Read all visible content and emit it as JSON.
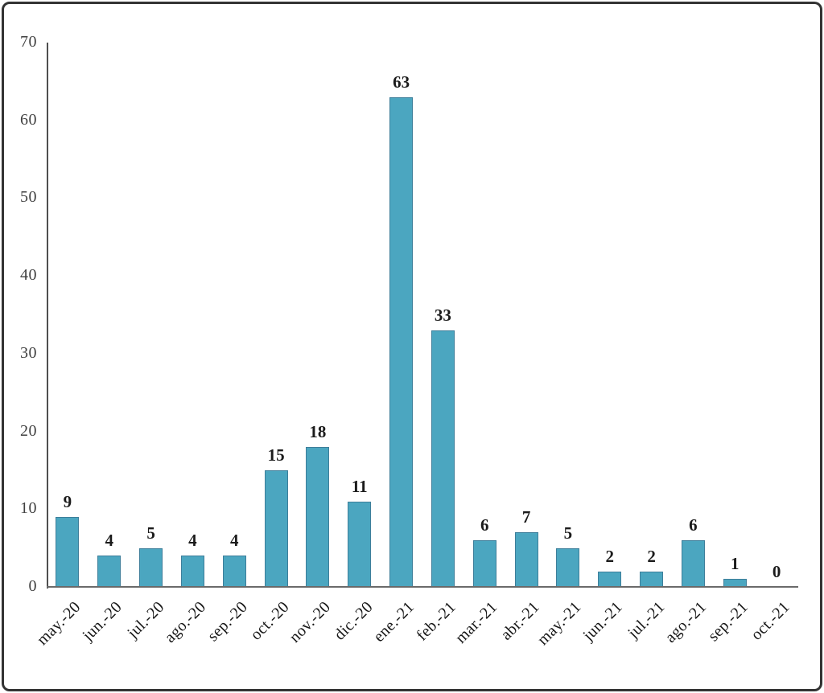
{
  "frame": {
    "background": "#ffffff",
    "border_color": "#333333"
  },
  "chart_data": {
    "type": "bar",
    "categories": [
      "may.-20",
      "jun.-20",
      "jul.-20",
      "ago.-20",
      "sep.-20",
      "oct.-20",
      "nov.-20",
      "dic.-20",
      "ene.-21",
      "feb.-21",
      "mar.-21",
      "abr.-21",
      "may.-21",
      "jun.-21",
      "jul.-21",
      "ago.-21",
      "sep.-21",
      "oct.-21"
    ],
    "values": [
      9,
      4,
      5,
      4,
      4,
      15,
      18,
      11,
      63,
      33,
      6,
      7,
      5,
      2,
      2,
      6,
      1,
      0
    ],
    "title": "",
    "xlabel": "",
    "ylabel": "",
    "ylim": [
      0,
      70
    ],
    "yticks": [
      0,
      10,
      20,
      30,
      40,
      50,
      60,
      70
    ],
    "grid": false,
    "legend": null,
    "data_labels": true,
    "bar_color": "#4BA6C0",
    "bar_border_color": "#3D7E9A",
    "value_label_color": "#1b1b1b",
    "x_tick_label_color": "#161616",
    "y_tick_label_color": "#3f3f3f",
    "x_axis_color": "#6a6a6a",
    "y_axis_color": "#4f4f4f"
  }
}
